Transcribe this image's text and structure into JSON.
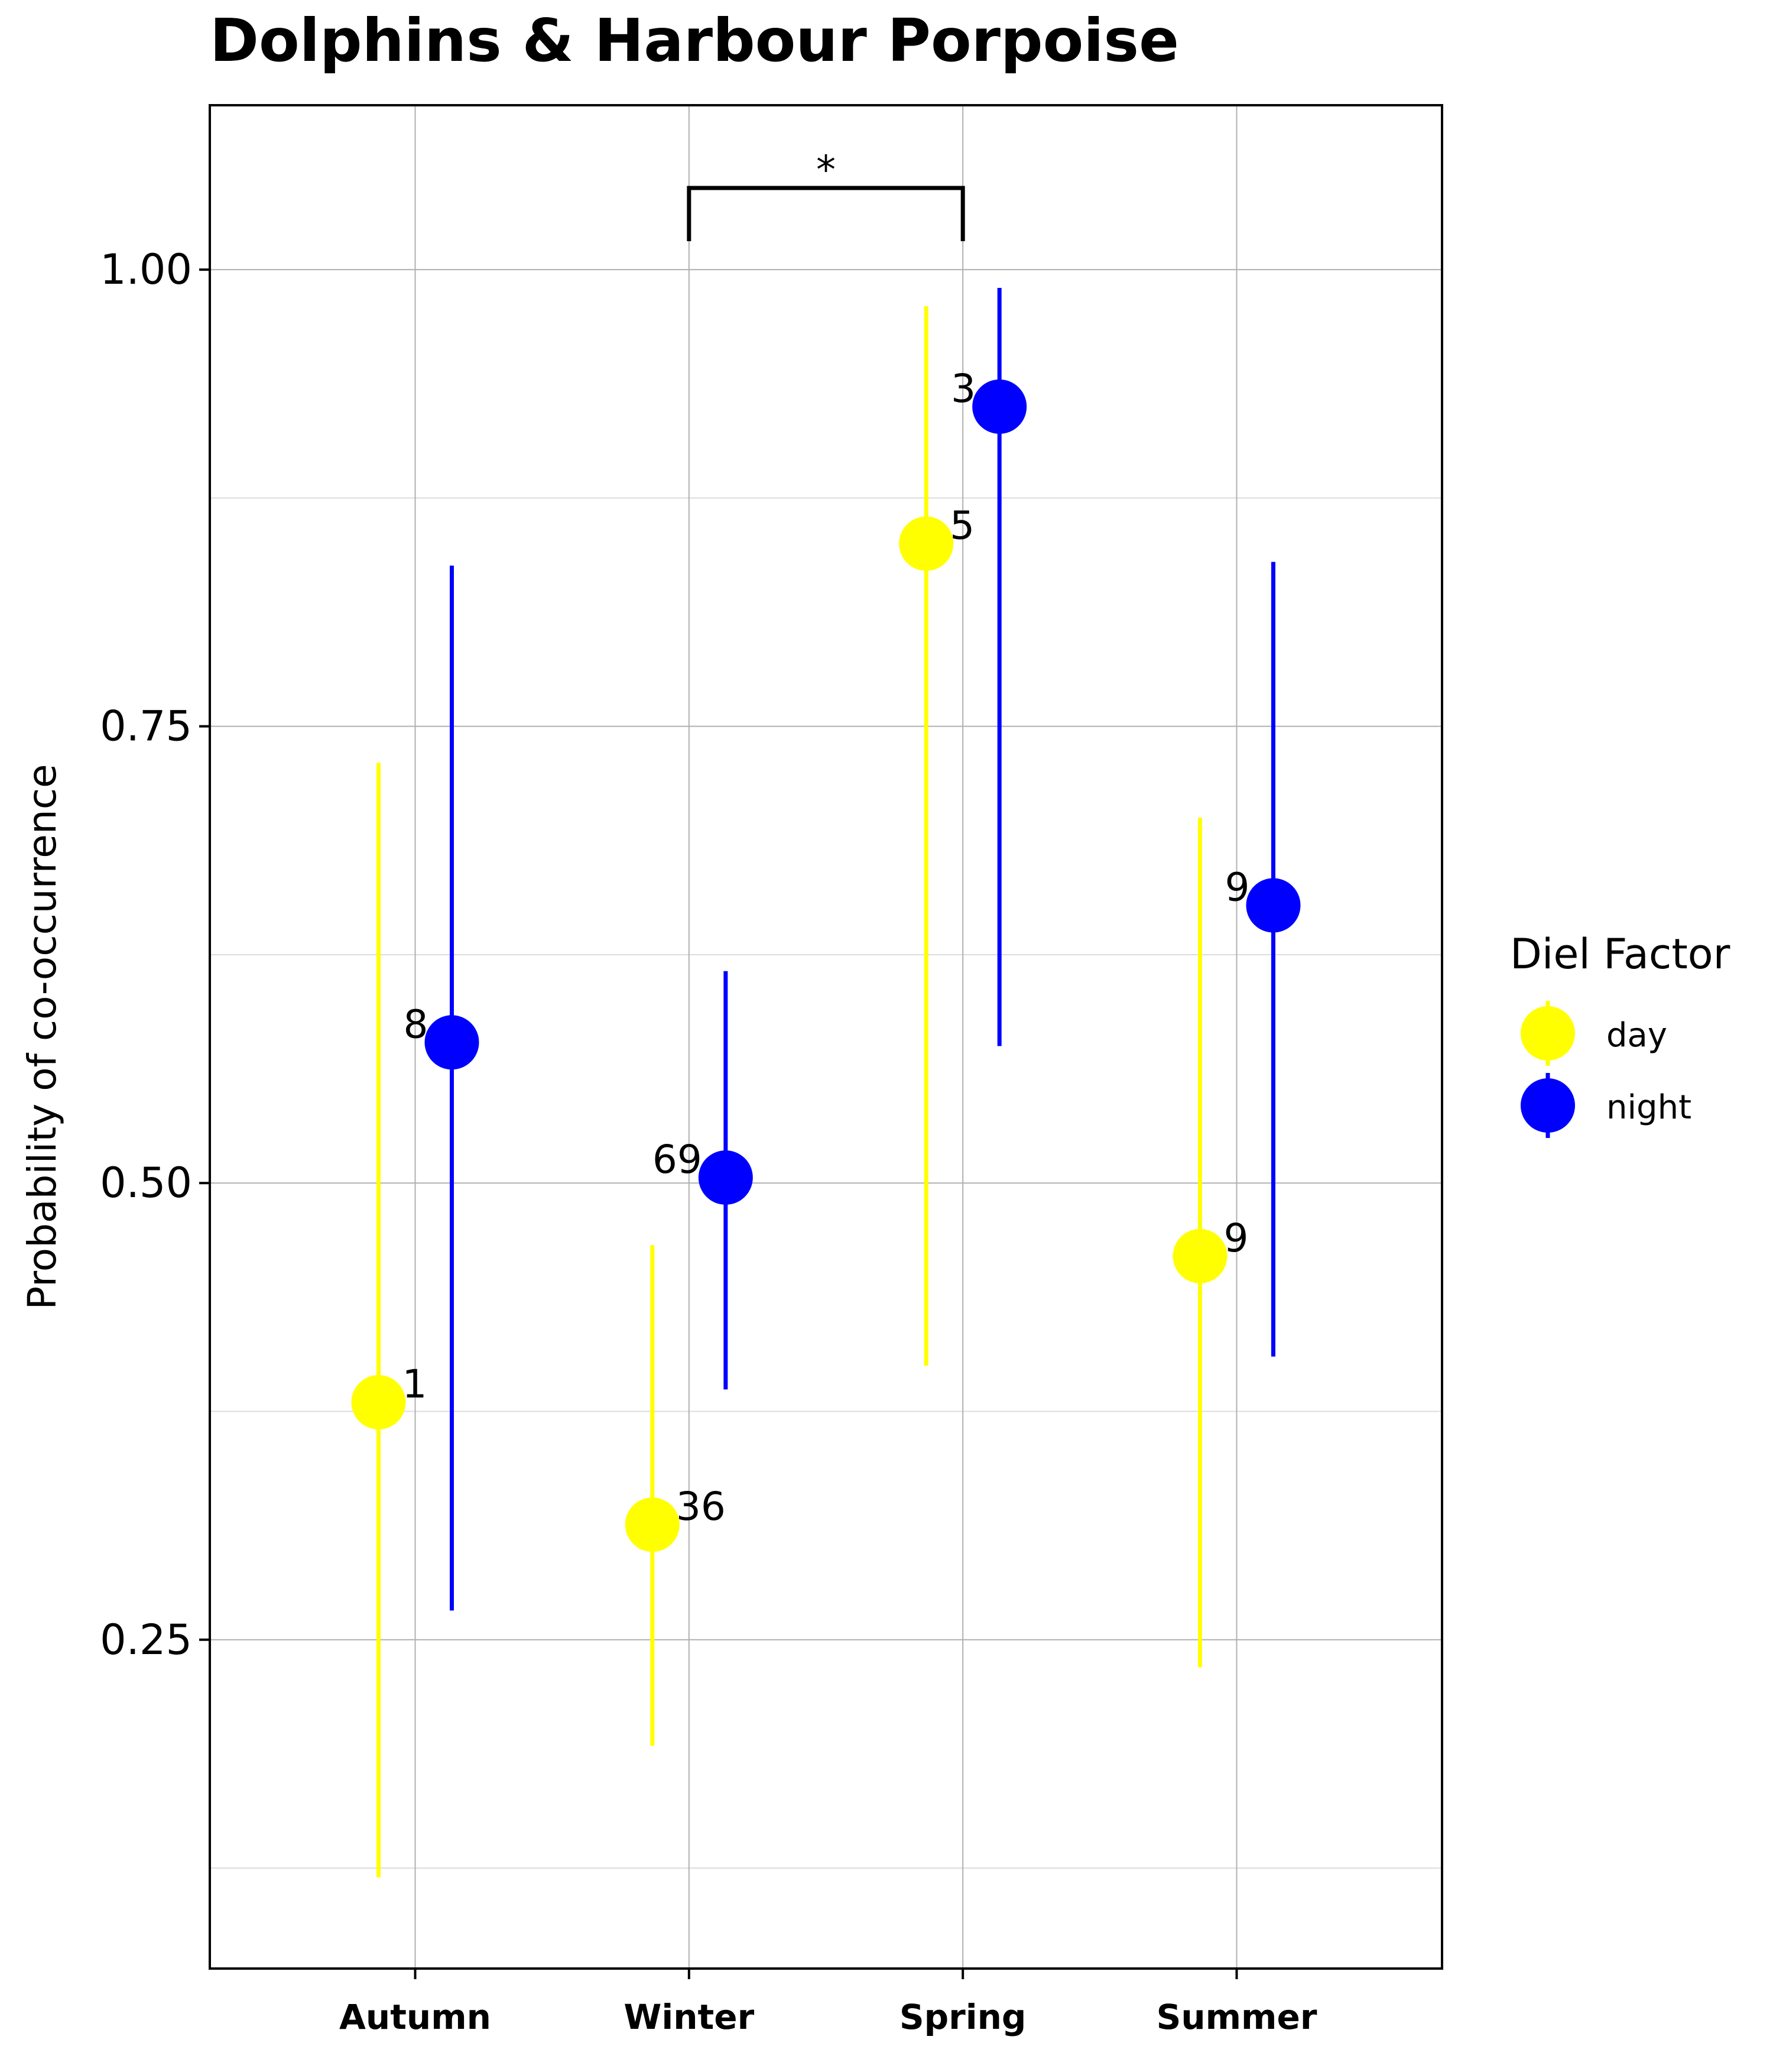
{
  "chart_data": {
    "type": "scatter",
    "title": "Dolphins & Harbour Porpoise",
    "xlabel": "",
    "ylabel": "Probability of co-occurrence",
    "categories": [
      "Autumn",
      "Winter",
      "Spring",
      "Summer"
    ],
    "ylim": [
      0.07,
      1.09
    ],
    "yticks": [
      0.25,
      0.5,
      0.75,
      1.0
    ],
    "ytick_labels": [
      "0.25",
      "0.50",
      "0.75",
      "1.00"
    ],
    "grid": true,
    "legend": {
      "title": "Diel Factor",
      "placement": "right"
    },
    "series": [
      {
        "name": "day",
        "color": "#ffff00",
        "values": [
          0.38,
          0.313,
          0.85,
          0.46
        ],
        "lower": [
          0.12,
          0.192,
          0.4,
          0.235
        ],
        "upper": [
          0.73,
          0.466,
          0.98,
          0.7
        ],
        "labels": [
          "1",
          "36",
          "5",
          "9"
        ]
      },
      {
        "name": "night",
        "color": "#0000ff",
        "values": [
          0.577,
          0.503,
          0.925,
          0.652
        ],
        "lower": [
          0.266,
          0.387,
          0.575,
          0.405
        ],
        "upper": [
          0.838,
          0.616,
          0.99,
          0.84
        ],
        "labels": [
          "8",
          "69",
          "3",
          "9"
        ]
      }
    ],
    "annotations": [
      {
        "type": "significance-bracket",
        "from": "Winter",
        "to": "Spring",
        "text": "*"
      }
    ]
  }
}
